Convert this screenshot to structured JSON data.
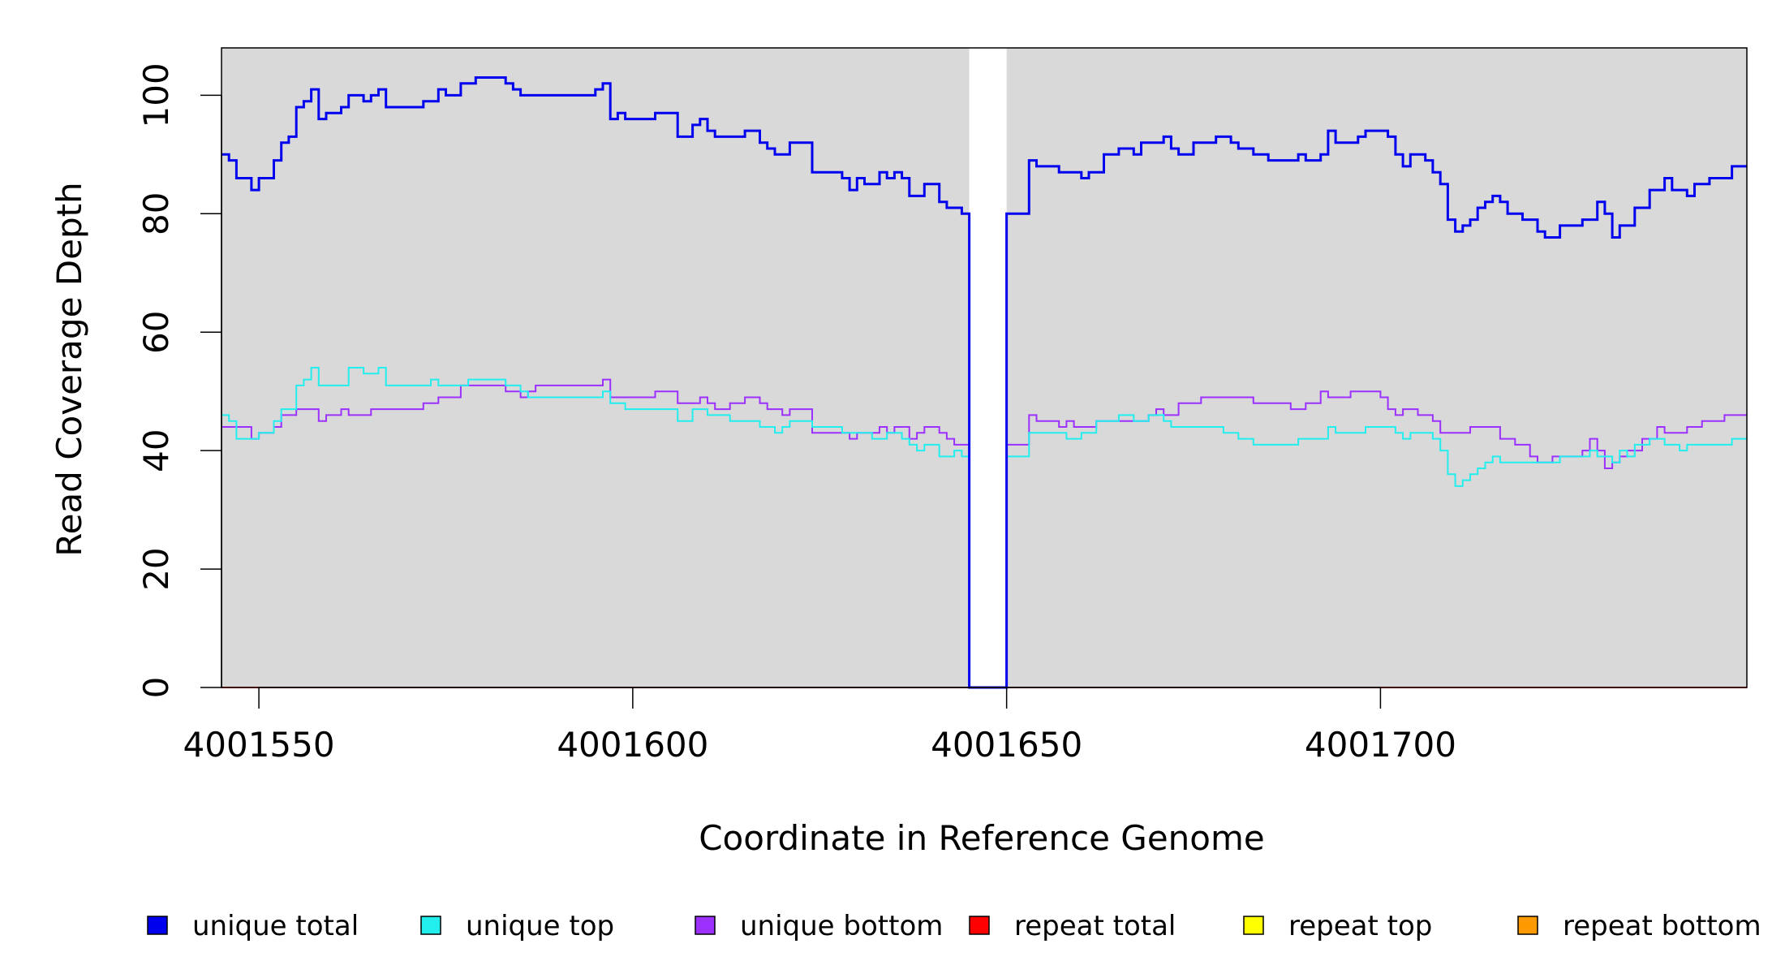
{
  "chart_data": {
    "type": "line",
    "style": "step",
    "xlabel": "Coordinate in Reference Genome",
    "ylabel": "Read Coverage Depth",
    "xlim": [
      4001545,
      4001749
    ],
    "ylim": [
      0,
      108
    ],
    "x_ticks": [
      4001550,
      4001600,
      4001650,
      4001700
    ],
    "x_tick_labels": [
      "4001550",
      "4001600",
      "4001650",
      "4001700"
    ],
    "y_ticks": [
      0,
      20,
      40,
      60,
      80,
      100
    ],
    "y_tick_labels": [
      "0",
      "20",
      "40",
      "60",
      "80",
      "100"
    ],
    "gap_region": [
      4001645,
      4001650
    ],
    "legend_position": "bottom",
    "series": [
      {
        "name": "unique total",
        "color": "#0000ee",
        "points": [
          [
            4001545,
            90
          ],
          [
            4001546,
            89
          ],
          [
            4001547,
            86
          ],
          [
            4001549,
            84
          ],
          [
            4001550,
            86
          ],
          [
            4001552,
            89
          ],
          [
            4001553,
            92
          ],
          [
            4001554,
            93
          ],
          [
            4001555,
            98
          ],
          [
            4001556,
            99
          ],
          [
            4001557,
            101
          ],
          [
            4001558,
            96
          ],
          [
            4001559,
            97
          ],
          [
            4001561,
            98
          ],
          [
            4001562,
            100
          ],
          [
            4001564,
            99
          ],
          [
            4001565,
            100
          ],
          [
            4001566,
            101
          ],
          [
            4001567,
            98
          ],
          [
            4001572,
            99
          ],
          [
            4001574,
            101
          ],
          [
            4001575,
            100
          ],
          [
            4001577,
            102
          ],
          [
            4001579,
            103
          ],
          [
            4001583,
            102
          ],
          [
            4001584,
            101
          ],
          [
            4001585,
            100
          ],
          [
            4001595,
            101
          ],
          [
            4001596,
            102
          ],
          [
            4001597,
            96
          ],
          [
            4001598,
            97
          ],
          [
            4001599,
            96
          ],
          [
            4001603,
            97
          ],
          [
            4001606,
            93
          ],
          [
            4001608,
            95
          ],
          [
            4001609,
            96
          ],
          [
            4001610,
            94
          ],
          [
            4001611,
            93
          ],
          [
            4001615,
            94
          ],
          [
            4001617,
            92
          ],
          [
            4001618,
            91
          ],
          [
            4001619,
            90
          ],
          [
            4001621,
            92
          ],
          [
            4001624,
            87
          ],
          [
            4001628,
            86
          ],
          [
            4001629,
            84
          ],
          [
            4001630,
            86
          ],
          [
            4001631,
            85
          ],
          [
            4001633,
            87
          ],
          [
            4001634,
            86
          ],
          [
            4001635,
            87
          ],
          [
            4001636,
            86
          ],
          [
            4001637,
            83
          ],
          [
            4001639,
            85
          ],
          [
            4001641,
            82
          ],
          [
            4001642,
            81
          ],
          [
            4001644,
            80
          ],
          [
            4001645,
            0
          ],
          [
            4001650,
            80
          ],
          [
            4001653,
            89
          ],
          [
            4001654,
            88
          ],
          [
            4001657,
            87
          ],
          [
            4001660,
            86
          ],
          [
            4001661,
            87
          ],
          [
            4001663,
            90
          ],
          [
            4001665,
            91
          ],
          [
            4001667,
            90
          ],
          [
            4001668,
            92
          ],
          [
            4001671,
            93
          ],
          [
            4001672,
            91
          ],
          [
            4001673,
            90
          ],
          [
            4001675,
            92
          ],
          [
            4001678,
            93
          ],
          [
            4001680,
            92
          ],
          [
            4001681,
            91
          ],
          [
            4001683,
            90
          ],
          [
            4001685,
            89
          ],
          [
            4001689,
            90
          ],
          [
            4001690,
            89
          ],
          [
            4001692,
            90
          ],
          [
            4001693,
            94
          ],
          [
            4001694,
            92
          ],
          [
            4001697,
            93
          ],
          [
            4001698,
            94
          ],
          [
            4001701,
            93
          ],
          [
            4001702,
            90
          ],
          [
            4001703,
            88
          ],
          [
            4001704,
            90
          ],
          [
            4001706,
            89
          ],
          [
            4001707,
            87
          ],
          [
            4001708,
            85
          ],
          [
            4001709,
            79
          ],
          [
            4001710,
            77
          ],
          [
            4001711,
            78
          ],
          [
            4001712,
            79
          ],
          [
            4001713,
            81
          ],
          [
            4001714,
            82
          ],
          [
            4001715,
            83
          ],
          [
            4001716,
            82
          ],
          [
            4001717,
            80
          ],
          [
            4001719,
            79
          ],
          [
            4001721,
            77
          ],
          [
            4001722,
            76
          ],
          [
            4001724,
            78
          ],
          [
            4001727,
            79
          ],
          [
            4001729,
            82
          ],
          [
            4001730,
            80
          ],
          [
            4001731,
            76
          ],
          [
            4001732,
            78
          ],
          [
            4001734,
            81
          ],
          [
            4001736,
            84
          ],
          [
            4001738,
            86
          ],
          [
            4001739,
            84
          ],
          [
            4001741,
            83
          ],
          [
            4001742,
            85
          ],
          [
            4001744,
            86
          ],
          [
            4001747,
            88
          ],
          [
            4001749,
            88
          ]
        ]
      },
      {
        "name": "unique top",
        "color": "#22eeee",
        "points": [
          [
            4001545,
            46
          ],
          [
            4001546,
            45
          ],
          [
            4001547,
            42
          ],
          [
            4001550,
            43
          ],
          [
            4001552,
            45
          ],
          [
            4001553,
            47
          ],
          [
            4001555,
            51
          ],
          [
            4001556,
            52
          ],
          [
            4001557,
            54
          ],
          [
            4001558,
            51
          ],
          [
            4001562,
            54
          ],
          [
            4001564,
            53
          ],
          [
            4001566,
            54
          ],
          [
            4001567,
            51
          ],
          [
            4001573,
            52
          ],
          [
            4001574,
            51
          ],
          [
            4001578,
            52
          ],
          [
            4001583,
            51
          ],
          [
            4001585,
            50
          ],
          [
            4001586,
            49
          ],
          [
            4001596,
            50
          ],
          [
            4001597,
            48
          ],
          [
            4001599,
            47
          ],
          [
            4001606,
            45
          ],
          [
            4001608,
            47
          ],
          [
            4001610,
            46
          ],
          [
            4001613,
            45
          ],
          [
            4001617,
            44
          ],
          [
            4001619,
            43
          ],
          [
            4001620,
            44
          ],
          [
            4001621,
            45
          ],
          [
            4001624,
            44
          ],
          [
            4001628,
            43
          ],
          [
            4001632,
            42
          ],
          [
            4001634,
            43
          ],
          [
            4001636,
            42
          ],
          [
            4001637,
            41
          ],
          [
            4001638,
            40
          ],
          [
            4001639,
            41
          ],
          [
            4001641,
            39
          ],
          [
            4001643,
            40
          ],
          [
            4001644,
            39
          ],
          [
            4001645,
            0
          ],
          [
            4001650,
            39
          ],
          [
            4001653,
            43
          ],
          [
            4001658,
            42
          ],
          [
            4001660,
            43
          ],
          [
            4001662,
            45
          ],
          [
            4001665,
            46
          ],
          [
            4001667,
            45
          ],
          [
            4001669,
            46
          ],
          [
            4001671,
            45
          ],
          [
            4001672,
            44
          ],
          [
            4001679,
            43
          ],
          [
            4001681,
            42
          ],
          [
            4001683,
            41
          ],
          [
            4001689,
            42
          ],
          [
            4001693,
            44
          ],
          [
            4001694,
            43
          ],
          [
            4001698,
            44
          ],
          [
            4001702,
            43
          ],
          [
            4001703,
            42
          ],
          [
            4001704,
            43
          ],
          [
            4001707,
            42
          ],
          [
            4001708,
            40
          ],
          [
            4001709,
            36
          ],
          [
            4001710,
            34
          ],
          [
            4001711,
            35
          ],
          [
            4001712,
            36
          ],
          [
            4001713,
            37
          ],
          [
            4001714,
            38
          ],
          [
            4001715,
            39
          ],
          [
            4001716,
            38
          ],
          [
            4001722,
            38
          ],
          [
            4001724,
            39
          ],
          [
            4001728,
            40
          ],
          [
            4001729,
            39
          ],
          [
            4001731,
            38
          ],
          [
            4001732,
            40
          ],
          [
            4001733,
            39
          ],
          [
            4001734,
            41
          ],
          [
            4001736,
            42
          ],
          [
            4001738,
            41
          ],
          [
            4001740,
            40
          ],
          [
            4001741,
            41
          ],
          [
            4001747,
            42
          ],
          [
            4001749,
            42
          ]
        ]
      },
      {
        "name": "unique bottom",
        "color": "#9b30ff",
        "points": [
          [
            4001545,
            44
          ],
          [
            4001549,
            42
          ],
          [
            4001550,
            43
          ],
          [
            4001552,
            44
          ],
          [
            4001553,
            46
          ],
          [
            4001555,
            47
          ],
          [
            4001558,
            45
          ],
          [
            4001559,
            46
          ],
          [
            4001561,
            47
          ],
          [
            4001562,
            46
          ],
          [
            4001565,
            47
          ],
          [
            4001572,
            48
          ],
          [
            4001574,
            49
          ],
          [
            4001577,
            51
          ],
          [
            4001583,
            50
          ],
          [
            4001585,
            49
          ],
          [
            4001586,
            50
          ],
          [
            4001587,
            51
          ],
          [
            4001596,
            52
          ],
          [
            4001597,
            49
          ],
          [
            4001603,
            50
          ],
          [
            4001606,
            48
          ],
          [
            4001609,
            49
          ],
          [
            4001610,
            48
          ],
          [
            4001611,
            47
          ],
          [
            4001613,
            48
          ],
          [
            4001615,
            49
          ],
          [
            4001617,
            48
          ],
          [
            4001618,
            47
          ],
          [
            4001620,
            46
          ],
          [
            4001621,
            47
          ],
          [
            4001624,
            43
          ],
          [
            4001629,
            42
          ],
          [
            4001630,
            43
          ],
          [
            4001632,
            43
          ],
          [
            4001633,
            44
          ],
          [
            4001634,
            43
          ],
          [
            4001635,
            44
          ],
          [
            4001637,
            42
          ],
          [
            4001638,
            43
          ],
          [
            4001639,
            44
          ],
          [
            4001641,
            43
          ],
          [
            4001642,
            42
          ],
          [
            4001643,
            41
          ],
          [
            4001645,
            0
          ],
          [
            4001650,
            41
          ],
          [
            4001653,
            46
          ],
          [
            4001654,
            45
          ],
          [
            4001657,
            44
          ],
          [
            4001658,
            45
          ],
          [
            4001659,
            44
          ],
          [
            4001662,
            45
          ],
          [
            4001669,
            46
          ],
          [
            4001670,
            47
          ],
          [
            4001671,
            46
          ],
          [
            4001673,
            48
          ],
          [
            4001676,
            49
          ],
          [
            4001683,
            48
          ],
          [
            4001688,
            47
          ],
          [
            4001690,
            48
          ],
          [
            4001692,
            50
          ],
          [
            4001693,
            49
          ],
          [
            4001696,
            50
          ],
          [
            4001700,
            49
          ],
          [
            4001701,
            47
          ],
          [
            4001702,
            46
          ],
          [
            4001703,
            47
          ],
          [
            4001705,
            46
          ],
          [
            4001707,
            45
          ],
          [
            4001708,
            43
          ],
          [
            4001712,
            44
          ],
          [
            4001716,
            42
          ],
          [
            4001718,
            41
          ],
          [
            4001720,
            39
          ],
          [
            4001721,
            38
          ],
          [
            4001723,
            39
          ],
          [
            4001727,
            40
          ],
          [
            4001728,
            42
          ],
          [
            4001729,
            40
          ],
          [
            4001730,
            37
          ],
          [
            4001731,
            38
          ],
          [
            4001732,
            39
          ],
          [
            4001733,
            40
          ],
          [
            4001735,
            42
          ],
          [
            4001737,
            44
          ],
          [
            4001738,
            43
          ],
          [
            4001741,
            44
          ],
          [
            4001743,
            45
          ],
          [
            4001746,
            46
          ],
          [
            4001749,
            46
          ]
        ]
      },
      {
        "name": "repeat total",
        "color": "#ff0000",
        "points": [
          [
            4001545,
            0
          ],
          [
            4001749,
            0
          ]
        ]
      },
      {
        "name": "repeat top",
        "color": "#ffff00",
        "points": [
          [
            4001545,
            0
          ],
          [
            4001749,
            0
          ]
        ]
      },
      {
        "name": "repeat bottom",
        "color": "#ff9900",
        "points": [
          [
            4001545,
            0
          ],
          [
            4001749,
            0
          ]
        ]
      }
    ]
  }
}
